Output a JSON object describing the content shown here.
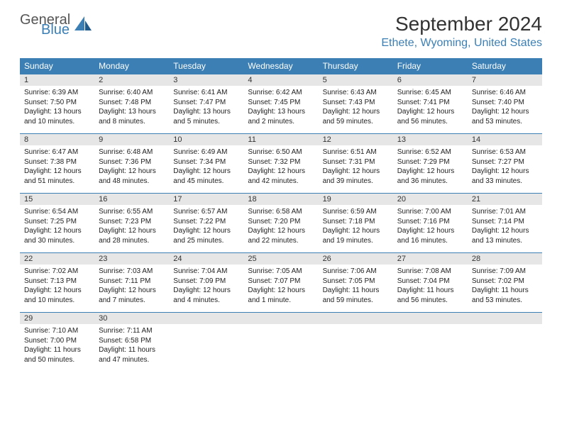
{
  "logo": {
    "text1": "General",
    "text2": "Blue"
  },
  "title": "September 2024",
  "location": "Ethete, Wyoming, United States",
  "colors": {
    "header_bg": "#3b7fb5",
    "daynum_bg": "#e6e6e6",
    "accent": "#3b7fb5"
  },
  "day_headers": [
    "Sunday",
    "Monday",
    "Tuesday",
    "Wednesday",
    "Thursday",
    "Friday",
    "Saturday"
  ],
  "weeks": [
    {
      "days": [
        {
          "n": "1",
          "sr": "Sunrise: 6:39 AM",
          "ss": "Sunset: 7:50 PM",
          "dl": "Daylight: 13 hours and 10 minutes."
        },
        {
          "n": "2",
          "sr": "Sunrise: 6:40 AM",
          "ss": "Sunset: 7:48 PM",
          "dl": "Daylight: 13 hours and 8 minutes."
        },
        {
          "n": "3",
          "sr": "Sunrise: 6:41 AM",
          "ss": "Sunset: 7:47 PM",
          "dl": "Daylight: 13 hours and 5 minutes."
        },
        {
          "n": "4",
          "sr": "Sunrise: 6:42 AM",
          "ss": "Sunset: 7:45 PM",
          "dl": "Daylight: 13 hours and 2 minutes."
        },
        {
          "n": "5",
          "sr": "Sunrise: 6:43 AM",
          "ss": "Sunset: 7:43 PM",
          "dl": "Daylight: 12 hours and 59 minutes."
        },
        {
          "n": "6",
          "sr": "Sunrise: 6:45 AM",
          "ss": "Sunset: 7:41 PM",
          "dl": "Daylight: 12 hours and 56 minutes."
        },
        {
          "n": "7",
          "sr": "Sunrise: 6:46 AM",
          "ss": "Sunset: 7:40 PM",
          "dl": "Daylight: 12 hours and 53 minutes."
        }
      ]
    },
    {
      "days": [
        {
          "n": "8",
          "sr": "Sunrise: 6:47 AM",
          "ss": "Sunset: 7:38 PM",
          "dl": "Daylight: 12 hours and 51 minutes."
        },
        {
          "n": "9",
          "sr": "Sunrise: 6:48 AM",
          "ss": "Sunset: 7:36 PM",
          "dl": "Daylight: 12 hours and 48 minutes."
        },
        {
          "n": "10",
          "sr": "Sunrise: 6:49 AM",
          "ss": "Sunset: 7:34 PM",
          "dl": "Daylight: 12 hours and 45 minutes."
        },
        {
          "n": "11",
          "sr": "Sunrise: 6:50 AM",
          "ss": "Sunset: 7:32 PM",
          "dl": "Daylight: 12 hours and 42 minutes."
        },
        {
          "n": "12",
          "sr": "Sunrise: 6:51 AM",
          "ss": "Sunset: 7:31 PM",
          "dl": "Daylight: 12 hours and 39 minutes."
        },
        {
          "n": "13",
          "sr": "Sunrise: 6:52 AM",
          "ss": "Sunset: 7:29 PM",
          "dl": "Daylight: 12 hours and 36 minutes."
        },
        {
          "n": "14",
          "sr": "Sunrise: 6:53 AM",
          "ss": "Sunset: 7:27 PM",
          "dl": "Daylight: 12 hours and 33 minutes."
        }
      ]
    },
    {
      "days": [
        {
          "n": "15",
          "sr": "Sunrise: 6:54 AM",
          "ss": "Sunset: 7:25 PM",
          "dl": "Daylight: 12 hours and 30 minutes."
        },
        {
          "n": "16",
          "sr": "Sunrise: 6:55 AM",
          "ss": "Sunset: 7:23 PM",
          "dl": "Daylight: 12 hours and 28 minutes."
        },
        {
          "n": "17",
          "sr": "Sunrise: 6:57 AM",
          "ss": "Sunset: 7:22 PM",
          "dl": "Daylight: 12 hours and 25 minutes."
        },
        {
          "n": "18",
          "sr": "Sunrise: 6:58 AM",
          "ss": "Sunset: 7:20 PM",
          "dl": "Daylight: 12 hours and 22 minutes."
        },
        {
          "n": "19",
          "sr": "Sunrise: 6:59 AM",
          "ss": "Sunset: 7:18 PM",
          "dl": "Daylight: 12 hours and 19 minutes."
        },
        {
          "n": "20",
          "sr": "Sunrise: 7:00 AM",
          "ss": "Sunset: 7:16 PM",
          "dl": "Daylight: 12 hours and 16 minutes."
        },
        {
          "n": "21",
          "sr": "Sunrise: 7:01 AM",
          "ss": "Sunset: 7:14 PM",
          "dl": "Daylight: 12 hours and 13 minutes."
        }
      ]
    },
    {
      "days": [
        {
          "n": "22",
          "sr": "Sunrise: 7:02 AM",
          "ss": "Sunset: 7:13 PM",
          "dl": "Daylight: 12 hours and 10 minutes."
        },
        {
          "n": "23",
          "sr": "Sunrise: 7:03 AM",
          "ss": "Sunset: 7:11 PM",
          "dl": "Daylight: 12 hours and 7 minutes."
        },
        {
          "n": "24",
          "sr": "Sunrise: 7:04 AM",
          "ss": "Sunset: 7:09 PM",
          "dl": "Daylight: 12 hours and 4 minutes."
        },
        {
          "n": "25",
          "sr": "Sunrise: 7:05 AM",
          "ss": "Sunset: 7:07 PM",
          "dl": "Daylight: 12 hours and 1 minute."
        },
        {
          "n": "26",
          "sr": "Sunrise: 7:06 AM",
          "ss": "Sunset: 7:05 PM",
          "dl": "Daylight: 11 hours and 59 minutes."
        },
        {
          "n": "27",
          "sr": "Sunrise: 7:08 AM",
          "ss": "Sunset: 7:04 PM",
          "dl": "Daylight: 11 hours and 56 minutes."
        },
        {
          "n": "28",
          "sr": "Sunrise: 7:09 AM",
          "ss": "Sunset: 7:02 PM",
          "dl": "Daylight: 11 hours and 53 minutes."
        }
      ]
    },
    {
      "days": [
        {
          "n": "29",
          "sr": "Sunrise: 7:10 AM",
          "ss": "Sunset: 7:00 PM",
          "dl": "Daylight: 11 hours and 50 minutes."
        },
        {
          "n": "30",
          "sr": "Sunrise: 7:11 AM",
          "ss": "Sunset: 6:58 PM",
          "dl": "Daylight: 11 hours and 47 minutes."
        },
        null,
        null,
        null,
        null,
        null
      ]
    }
  ]
}
